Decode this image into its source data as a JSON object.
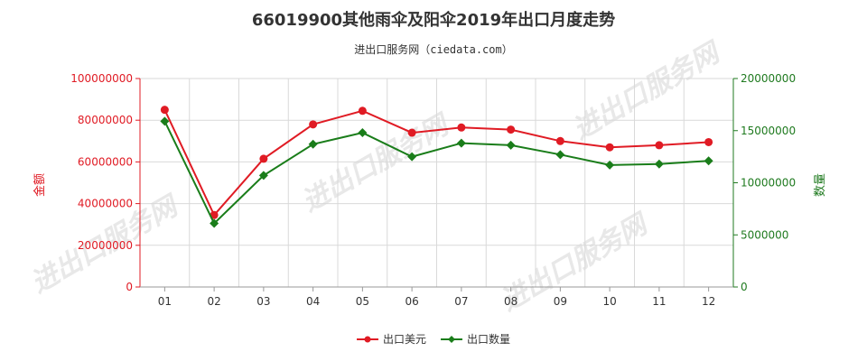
{
  "chart_data": {
    "type": "line",
    "title": "66019900其他雨伞及阳伞2019年出口月度走势",
    "subtitle": "进出口服务网（ciedata.com）",
    "watermark": "进出口服务网",
    "categories": [
      "01",
      "02",
      "03",
      "04",
      "05",
      "06",
      "07",
      "08",
      "09",
      "10",
      "11",
      "12"
    ],
    "y_left": {
      "label": "金额",
      "ylim": [
        0,
        100000000
      ],
      "ticks": [
        "0",
        "20000000",
        "40000000",
        "60000000",
        "80000000",
        "100000000"
      ],
      "color": "#e01b24"
    },
    "y_right": {
      "label": "数量",
      "ylim": [
        0,
        20000000
      ],
      "ticks": [
        "0",
        "5000000",
        "10000000",
        "15000000",
        "20000000"
      ],
      "color": "#1f7a1f"
    },
    "series": [
      {
        "name": "出口美元",
        "axis": "left",
        "color": "#e01b24",
        "marker": "circle",
        "values": [
          85000000,
          34500000,
          61500000,
          78000000,
          84500000,
          74000000,
          76500000,
          75500000,
          70000000,
          67000000,
          68000000,
          69500000
        ]
      },
      {
        "name": "出口数量",
        "axis": "right",
        "color": "#1a7d1a",
        "marker": "diamond",
        "values": [
          15900000,
          6100000,
          10700000,
          13700000,
          14800000,
          12500000,
          13800000,
          13600000,
          12700000,
          11700000,
          11800000,
          12100000
        ]
      }
    ],
    "grid": true,
    "legend_position": "bottom-center"
  }
}
